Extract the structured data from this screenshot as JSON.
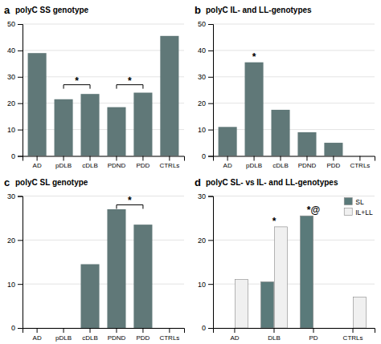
{
  "chart_data": [
    {
      "type": "bar",
      "label": "a",
      "title": "polyC SS genotype",
      "categories": [
        "AD",
        "pDLB",
        "cDLB",
        "PDND",
        "PDD",
        "CTRLs"
      ],
      "values": [
        39,
        21.5,
        23.5,
        18.5,
        24,
        45.5
      ],
      "color": "#607878",
      "ylim": [
        0,
        50
      ],
      "yticks": [
        0,
        10,
        20,
        30,
        40,
        50
      ],
      "grid": true,
      "annotations": [
        {
          "text": "*",
          "x1": "pDLB",
          "x2": "cDLB",
          "y": 27
        },
        {
          "text": "*",
          "x1": "PDND",
          "x2": "PDD",
          "y": 27
        }
      ]
    },
    {
      "type": "bar",
      "label": "b",
      "title": "polyC IL- and LL-genotypes",
      "categories": [
        "AD",
        "pDLB",
        "cDLB",
        "PDND",
        "PDD",
        "CTRLs"
      ],
      "values": [
        11,
        35.5,
        17.5,
        9,
        5,
        0
      ],
      "color": "#607878",
      "ylim": [
        0,
        50
      ],
      "yticks": [
        0,
        10,
        20,
        30,
        40,
        50
      ],
      "grid": true,
      "annotations": [
        {
          "text": "*",
          "x": "pDLB"
        }
      ]
    },
    {
      "type": "bar",
      "label": "c",
      "title": "polyC SL genotype",
      "categories": [
        "AD",
        "pDLB",
        "cDLB",
        "PDND",
        "PDD",
        "CTRLs"
      ],
      "values": [
        0,
        0,
        14.5,
        27,
        23.5,
        0
      ],
      "color": "#607878",
      "ylim": [
        0,
        30
      ],
      "yticks": [
        0,
        10,
        20,
        30
      ],
      "grid": true,
      "annotations": [
        {
          "text": "*",
          "x1": "PDND",
          "x2": "PDD",
          "y": 28
        }
      ]
    },
    {
      "type": "bar",
      "label": "d",
      "title": "polyC SL- vs IL- and LL-genotypes",
      "categories": [
        "AD",
        "DLB",
        "PD",
        "CTRLs"
      ],
      "series": [
        {
          "name": "SL",
          "values": [
            0,
            10.5,
            25.5,
            0
          ],
          "color": "#5a7a7a"
        },
        {
          "name": "IL+LL",
          "values": [
            11,
            23,
            0,
            7
          ],
          "color": "#f0f0f0"
        }
      ],
      "ylim": [
        0,
        30
      ],
      "yticks": [
        0,
        10,
        20,
        30
      ],
      "grid": true,
      "legend": "upper-right",
      "annotations": [
        {
          "text": "*",
          "x": "DLB"
        },
        {
          "text": "*@",
          "x": "PD"
        }
      ]
    }
  ]
}
